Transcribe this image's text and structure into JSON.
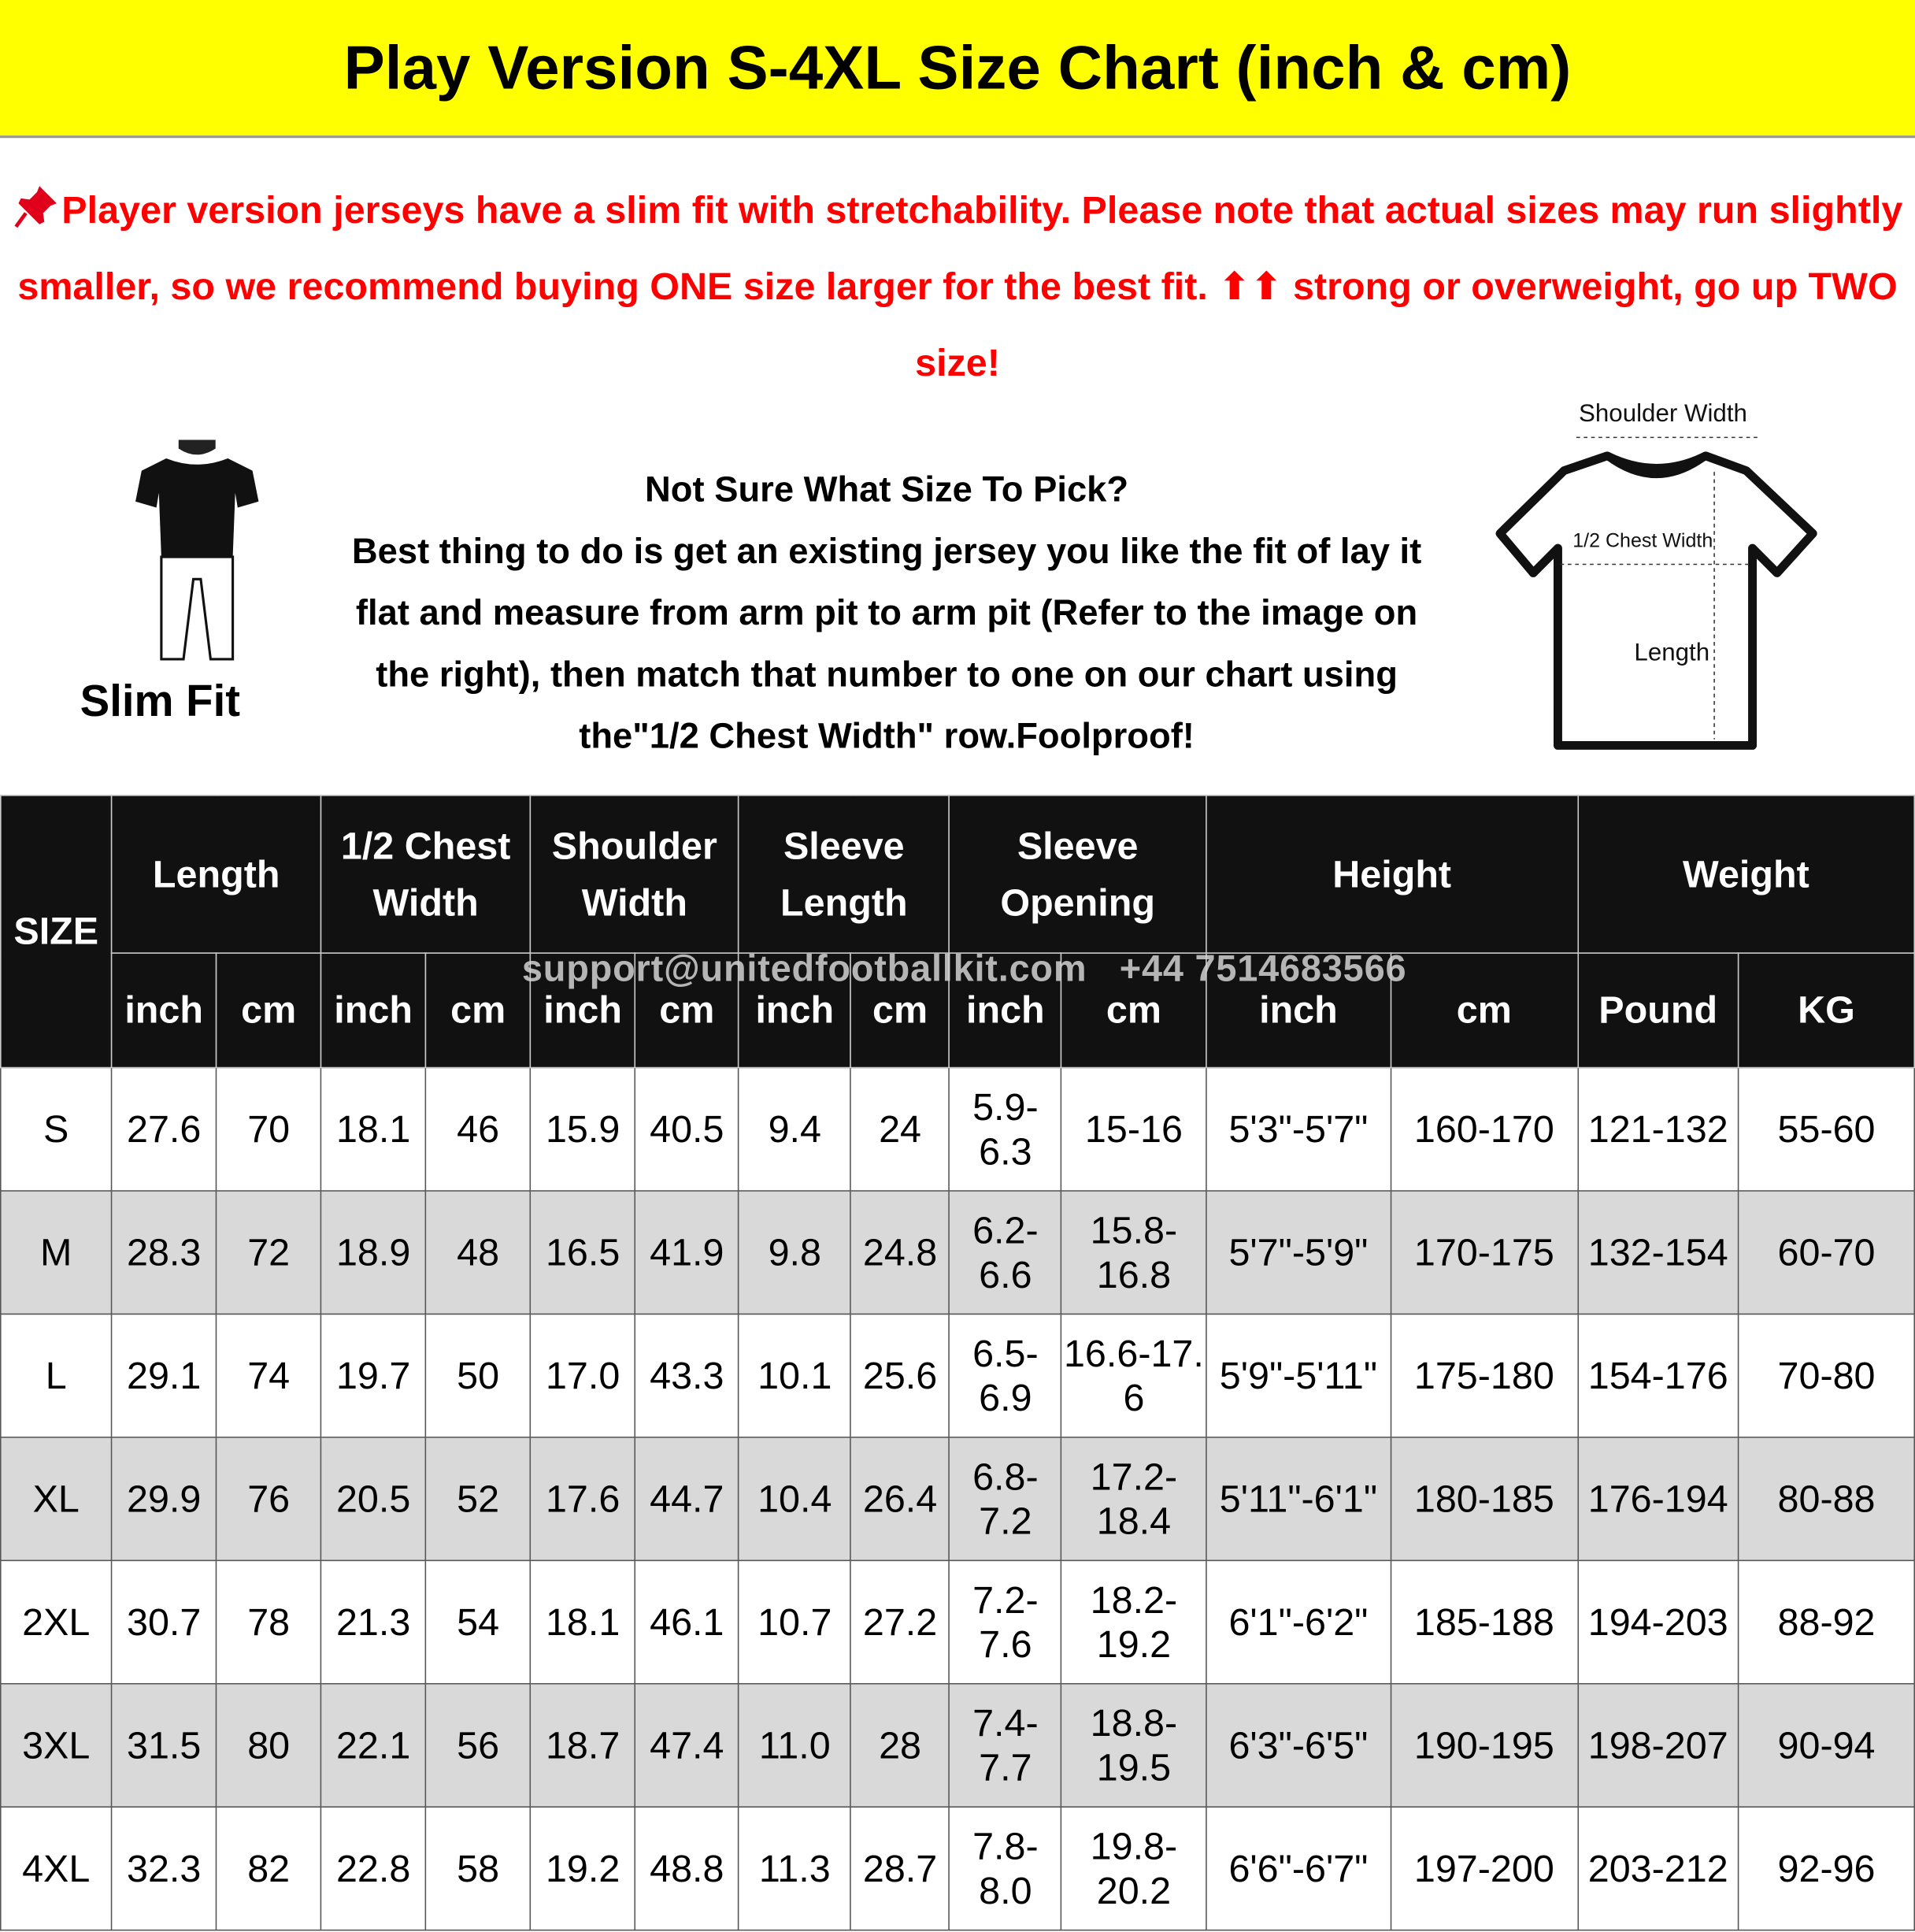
{
  "header": {
    "title": "Play Version S-4XL Size Chart (inch & cm)"
  },
  "note": "Player version jerseys have a slim fit with stretchability. Please note that actual sizes may run slightly smaller, so we recommend buying ONE size larger for the best fit. ⬆⬆ strong or overweight, go up TWO size!",
  "fit_label": "Slim Fit",
  "guide": {
    "heading": "Not Sure What Size To Pick?",
    "body": "Best thing to do is get an existing jersey you like the fit of lay it flat and measure from arm pit to arm pit (Refer to the image on the right), then match that number to one on our chart using the\"1/2 Chest Width\" row.Foolproof!"
  },
  "diagram": {
    "shoulder": "Shoulder Width",
    "chest": "1/2 Chest Width",
    "length": "Length"
  },
  "watermark": "support@unitedfootballkit.com   +44 7514683566",
  "table": {
    "size_header": "SIZE",
    "groups": [
      "Length",
      "1/2 Chest Width",
      "Shoulder Width",
      "Sleeve Length",
      "Sleeve Opening",
      "Height",
      "Weight"
    ],
    "units": [
      "inch",
      "cm",
      "inch",
      "cm",
      "inch",
      "cm",
      "inch",
      "cm",
      "inch",
      "cm",
      "inch",
      "cm",
      "Pound",
      "KG"
    ],
    "rows": [
      [
        "S",
        "27.6",
        "70",
        "18.1",
        "46",
        "15.9",
        "40.5",
        "9.4",
        "24",
        "5.9-6.3",
        "15-16",
        "5'3\"-5'7\"",
        "160-170",
        "121-132",
        "55-60"
      ],
      [
        "M",
        "28.3",
        "72",
        "18.9",
        "48",
        "16.5",
        "41.9",
        "9.8",
        "24.8",
        "6.2-6.6",
        "15.8-16.8",
        "5'7\"-5'9\"",
        "170-175",
        "132-154",
        "60-70"
      ],
      [
        "L",
        "29.1",
        "74",
        "19.7",
        "50",
        "17.0",
        "43.3",
        "10.1",
        "25.6",
        "6.5-6.9",
        "16.6-17. 6",
        "5'9\"-5'11\"",
        "175-180",
        "154-176",
        "70-80"
      ],
      [
        "XL",
        "29.9",
        "76",
        "20.5",
        "52",
        "17.6",
        "44.7",
        "10.4",
        "26.4",
        "6.8-7.2",
        "17.2-18.4",
        "5'11\"-6'1\"",
        "180-185",
        "176-194",
        "80-88"
      ],
      [
        "2XL",
        "30.7",
        "78",
        "21.3",
        "54",
        "18.1",
        "46.1",
        "10.7",
        "27.2",
        "7.2-7.6",
        "18.2-19.2",
        "6'1\"-6'2\"",
        "185-188",
        "194-203",
        "88-92"
      ],
      [
        "3XL",
        "31.5",
        "80",
        "22.1",
        "56",
        "18.7",
        "47.4",
        "11.0",
        "28",
        "7.4-7.7",
        "18.8-19.5",
        "6'3\"-6'5\"",
        "190-195",
        "198-207",
        "90-94"
      ],
      [
        "4XL",
        "32.3",
        "82",
        "22.8",
        "58",
        "19.2",
        "48.8",
        "11.3",
        "28.7",
        "7.8-8.0",
        "19.8-20.2",
        "6'6\"-6'7\"",
        "197-200",
        "203-212",
        "92-96"
      ]
    ]
  }
}
